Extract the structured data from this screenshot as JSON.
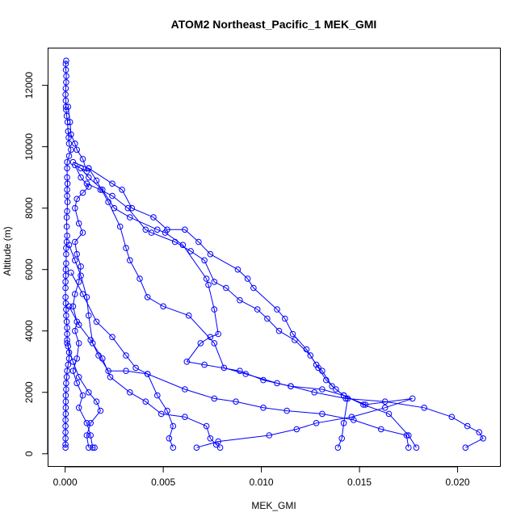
{
  "chart_data": {
    "type": "line",
    "title": "ATOM2 Northeast_Pacific_1 MEK_GMI",
    "xlabel": "MEK_GMI",
    "ylabel": "Altitude (m)",
    "xlim": [
      -0.00085,
      0.0222
    ],
    "ylim": [
      -400,
      13200
    ],
    "xticks": [
      0.0,
      0.005,
      0.01,
      0.015,
      0.02
    ],
    "xtick_labels": [
      "0.000",
      "0.005",
      "0.010",
      "0.015",
      "0.020"
    ],
    "yticks": [
      0,
      2000,
      4000,
      6000,
      8000,
      10000,
      12000
    ],
    "ytick_labels": [
      "0",
      "2000",
      "4000",
      "6000",
      "8000",
      "10000",
      "12000"
    ],
    "marker": "open-circle",
    "color": "#0000ff",
    "grid": false,
    "series": [
      {
        "points": [
          [
            5e-05,
            12800
          ],
          [
            3e-05,
            12700
          ],
          [
            4e-05,
            12500
          ],
          [
            6e-05,
            12300
          ],
          [
            5e-05,
            12100
          ],
          [
            3e-05,
            11900
          ],
          [
            2e-05,
            11700
          ],
          [
            3e-05,
            11500
          ],
          [
            4e-05,
            11300
          ],
          [
            5e-05,
            11200
          ],
          [
            8e-05,
            11000
          ],
          [
            0.00012,
            10800
          ],
          [
            0.00015,
            10500
          ],
          [
            0.00018,
            10300
          ],
          [
            0.0002,
            10100
          ],
          [
            0.0003,
            9900
          ],
          [
            0.0002,
            9700
          ],
          [
            0.0001,
            9500
          ],
          [
            0.0001,
            9300
          ],
          [
            0.0001,
            9000
          ],
          [
            0.00012,
            8800
          ],
          [
            0.0001,
            8600
          ],
          [
            0.0001,
            8400
          ],
          [
            0.00012,
            8200
          ],
          [
            0.0001,
            7900
          ],
          [
            8e-05,
            7700
          ],
          [
            8e-05,
            7400
          ],
          [
            0.0001,
            7100
          ],
          [
            8e-05,
            6900
          ],
          [
            5e-05,
            6700
          ],
          [
            5e-05,
            6500
          ],
          [
            5e-05,
            6200
          ],
          [
            3e-05,
            6000
          ],
          [
            3e-05,
            5800
          ],
          [
            2e-05,
            5600
          ],
          [
            2e-05,
            5400
          ],
          [
            2e-05,
            5100
          ],
          [
            3e-05,
            4900
          ],
          [
            5e-05,
            4700
          ],
          [
            5e-05,
            4500
          ],
          [
            8e-05,
            4300
          ],
          [
            0.0001,
            4100
          ],
          [
            0.0001,
            3900
          ],
          [
            0.0001,
            3700
          ],
          [
            0.00015,
            3500
          ],
          [
            0.0002,
            3300
          ],
          [
            0.0002,
            3100
          ],
          [
            0.00015,
            2900
          ],
          [
            0.0001,
            2700
          ],
          [
            8e-05,
            2500
          ],
          [
            5e-05,
            2300
          ],
          [
            5e-05,
            2100
          ],
          [
            3e-05,
            1900
          ],
          [
            3e-05,
            1700
          ],
          [
            3e-05,
            1500
          ],
          [
            3e-05,
            1300
          ],
          [
            2e-05,
            1100
          ],
          [
            2e-05,
            900
          ],
          [
            2e-05,
            700
          ],
          [
            2e-05,
            500
          ],
          [
            2e-05,
            300
          ],
          [
            2e-05,
            200
          ]
        ]
      },
      {
        "points": [
          [
            0.00015,
            11300
          ],
          [
            0.00025,
            10800
          ],
          [
            0.0003,
            10400
          ],
          [
            0.0005,
            10100
          ],
          [
            0.0006,
            9900
          ],
          [
            0.0009,
            9600
          ],
          [
            0.0011,
            9200
          ],
          [
            0.0005,
            9400
          ],
          [
            0.0008,
            9000
          ],
          [
            0.0012,
            8700
          ],
          [
            0.0009,
            8500
          ],
          [
            0.0006,
            8300
          ],
          [
            0.0005,
            8000
          ],
          [
            0.0007,
            7500
          ],
          [
            0.0009,
            7200
          ],
          [
            0.0005,
            6900
          ],
          [
            0.0006,
            6500
          ],
          [
            0.0008,
            6100
          ],
          [
            0.0007,
            5600
          ],
          [
            0.0005,
            5200
          ],
          [
            0.0004,
            4800
          ],
          [
            0.0006,
            4300
          ],
          [
            0.0005,
            4000
          ],
          [
            0.0007,
            3600
          ],
          [
            0.0006,
            3100
          ],
          [
            0.0004,
            2700
          ],
          [
            0.0006,
            2300
          ],
          [
            0.0009,
            1900
          ],
          [
            0.0007,
            1500
          ],
          [
            0.0011,
            1000
          ],
          [
            0.0013,
            600
          ],
          [
            0.0014,
            200
          ],
          [
            0.0015,
            200
          ]
        ]
      },
      {
        "points": [
          [
            0.0012,
            9300
          ],
          [
            0.0024,
            8800
          ],
          [
            0.0029,
            8600
          ],
          [
            0.0034,
            8000
          ],
          [
            0.0045,
            7700
          ],
          [
            0.0052,
            7300
          ],
          [
            0.0061,
            7300
          ],
          [
            0.0068,
            6900
          ],
          [
            0.0074,
            6500
          ],
          [
            0.0088,
            6000
          ],
          [
            0.0093,
            5700
          ],
          [
            0.0096,
            5400
          ],
          [
            0.0108,
            4700
          ],
          [
            0.0112,
            4400
          ],
          [
            0.0116,
            3900
          ],
          [
            0.0123,
            3400
          ],
          [
            0.0128,
            2900
          ],
          [
            0.0131,
            2700
          ],
          [
            0.0136,
            2200
          ],
          [
            0.0142,
            1900
          ],
          [
            0.0152,
            1600
          ],
          [
            0.0165,
            1300
          ],
          [
            0.0175,
            600
          ],
          [
            0.0179,
            200
          ]
        ]
      },
      {
        "points": [
          [
            0.0011,
            8800
          ],
          [
            0.0018,
            8600
          ],
          [
            0.0024,
            8400
          ],
          [
            0.0032,
            8000
          ],
          [
            0.0041,
            7300
          ],
          [
            0.0044,
            7200
          ],
          [
            0.0056,
            6900
          ],
          [
            0.0064,
            6600
          ],
          [
            0.0071,
            6300
          ],
          [
            0.0076,
            5600
          ],
          [
            0.0082,
            5400
          ],
          [
            0.0089,
            5000
          ],
          [
            0.0098,
            4700
          ],
          [
            0.0103,
            4400
          ],
          [
            0.0109,
            4000
          ],
          [
            0.0117,
            3700
          ],
          [
            0.0125,
            3200
          ],
          [
            0.0129,
            2800
          ],
          [
            0.0133,
            2400
          ],
          [
            0.0138,
            2100
          ],
          [
            0.0144,
            1800
          ],
          [
            0.0142,
            1000
          ],
          [
            0.0141,
            500
          ],
          [
            0.0139,
            200
          ]
        ]
      },
      {
        "points": [
          [
            0.0008,
            9300
          ],
          [
            0.0012,
            9000
          ],
          [
            0.0019,
            8600
          ],
          [
            0.0025,
            8000
          ],
          [
            0.0033,
            7700
          ],
          [
            0.0047,
            7300
          ],
          [
            0.0051,
            7200
          ],
          [
            0.006,
            6800
          ],
          [
            0.0072,
            5700
          ],
          [
            0.0073,
            5500
          ],
          [
            0.0076,
            4700
          ],
          [
            0.0078,
            3900
          ],
          [
            0.0074,
            3800
          ],
          [
            0.0069,
            3600
          ],
          [
            0.0062,
            3000
          ],
          [
            0.0071,
            2900
          ],
          [
            0.0089,
            2700
          ],
          [
            0.0101,
            2400
          ],
          [
            0.0115,
            2200
          ],
          [
            0.0131,
            2100
          ],
          [
            0.0142,
            1900
          ],
          [
            0.0153,
            1600
          ],
          [
            0.0177,
            1800
          ],
          [
            0.0163,
            1500
          ],
          [
            0.0146,
            1200
          ],
          [
            0.0128,
            1000
          ],
          [
            0.0118,
            800
          ],
          [
            0.0104,
            600
          ],
          [
            0.0078,
            400
          ],
          [
            0.0067,
            200
          ]
        ]
      },
      {
        "points": [
          [
            0.0004,
            9500
          ],
          [
            0.0012,
            9300
          ],
          [
            0.0016,
            8900
          ],
          [
            0.0022,
            8200
          ],
          [
            0.0028,
            7400
          ],
          [
            0.0031,
            6700
          ],
          [
            0.0033,
            6300
          ],
          [
            0.0038,
            5700
          ],
          [
            0.0042,
            5100
          ],
          [
            0.005,
            4800
          ],
          [
            0.0063,
            4500
          ],
          [
            0.0076,
            3600
          ],
          [
            0.0081,
            2800
          ],
          [
            0.0092,
            2600
          ],
          [
            0.0108,
            2300
          ],
          [
            0.0115,
            2200
          ],
          [
            0.0127,
            2000
          ],
          [
            0.0143,
            1800
          ],
          [
            0.0163,
            1700
          ],
          [
            0.0183,
            1500
          ],
          [
            0.0197,
            1200
          ],
          [
            0.0205,
            900
          ],
          [
            0.0211,
            700
          ],
          [
            0.0213,
            500
          ],
          [
            0.0204,
            200
          ]
        ]
      },
      {
        "points": [
          [
            0.0002,
            6800
          ],
          [
            0.0005,
            6300
          ],
          [
            0.0008,
            5800
          ],
          [
            0.0011,
            5100
          ],
          [
            0.0012,
            4500
          ],
          [
            0.0014,
            3600
          ],
          [
            0.0017,
            3200
          ],
          [
            0.0022,
            2700
          ],
          [
            0.0031,
            2700
          ],
          [
            0.0042,
            2600
          ],
          [
            0.0061,
            2100
          ],
          [
            0.0076,
            1800
          ],
          [
            0.0087,
            1700
          ],
          [
            0.0101,
            1500
          ],
          [
            0.0113,
            1400
          ],
          [
            0.0131,
            1300
          ],
          [
            0.0147,
            1100
          ],
          [
            0.0161,
            800
          ],
          [
            0.0174,
            600
          ],
          [
            0.0175,
            200
          ]
        ]
      },
      {
        "points": [
          [
            0.0003,
            5900
          ],
          [
            0.0009,
            5200
          ],
          [
            0.0016,
            4300
          ],
          [
            0.0024,
            3800
          ],
          [
            0.0031,
            3200
          ],
          [
            0.0036,
            2800
          ],
          [
            0.0042,
            2600
          ],
          [
            0.0047,
            1900
          ],
          [
            0.0052,
            1400
          ],
          [
            0.0055,
            900
          ],
          [
            0.0053,
            500
          ],
          [
            0.0055,
            200
          ]
        ]
      },
      {
        "points": [
          [
            0.0002,
            4800
          ],
          [
            0.0007,
            4200
          ],
          [
            0.0013,
            3700
          ],
          [
            0.0019,
            3100
          ],
          [
            0.0023,
            2500
          ],
          [
            0.0033,
            2000
          ],
          [
            0.0041,
            1700
          ],
          [
            0.0049,
            1300
          ],
          [
            0.0061,
            1200
          ],
          [
            0.0072,
            900
          ],
          [
            0.0074,
            500
          ],
          [
            0.0077,
            300
          ],
          [
            0.0079,
            200
          ]
        ]
      },
      {
        "points": [
          [
            0.0001,
            3600
          ],
          [
            0.0004,
            3000
          ],
          [
            0.0007,
            2500
          ],
          [
            0.0012,
            2000
          ],
          [
            0.0016,
            1700
          ],
          [
            0.0018,
            1400
          ],
          [
            0.0013,
            1000
          ],
          [
            0.0011,
            600
          ],
          [
            0.0012,
            200
          ]
        ]
      }
    ]
  }
}
